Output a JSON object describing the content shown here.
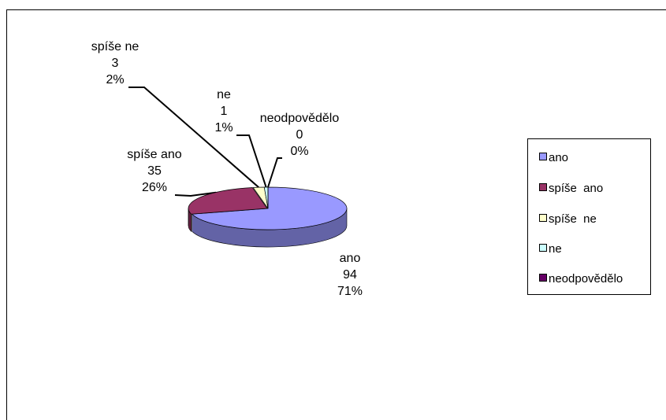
{
  "chart_data": {
    "type": "pie",
    "title": "",
    "categories": [
      "ano",
      "spíše ano",
      "spíše ne",
      "ne",
      "neodpovědělo"
    ],
    "values": [
      94,
      35,
      3,
      1,
      0
    ],
    "percent_labels": [
      "71%",
      "26%",
      "2%",
      "1%",
      "0%"
    ],
    "colors": [
      "#9999ff",
      "#993366",
      "#ffffcc",
      "#ccffff",
      "#660066"
    ],
    "legend_placement": "right",
    "style": "3d-exploded"
  },
  "labels": [
    {
      "name": "ano",
      "value": "94",
      "percent": "71%"
    },
    {
      "name": "spíše ano",
      "value": "35",
      "percent": "26%"
    },
    {
      "name": "spíše ne",
      "value": "3",
      "percent": "2%"
    },
    {
      "name": "ne",
      "value": "1",
      "percent": "1%"
    },
    {
      "name": "neodpovědělo",
      "value": "0",
      "percent": "0%"
    }
  ],
  "legend": {
    "items": [
      {
        "label": "ano",
        "color": "#9999ff"
      },
      {
        "label": "spíše  ano",
        "color": "#993366"
      },
      {
        "label": "spíše  ne",
        "color": "#ffffcc"
      },
      {
        "label": "ne",
        "color": "#ccffff"
      },
      {
        "label": "neodpovědělo",
        "color": "#660066"
      }
    ]
  }
}
